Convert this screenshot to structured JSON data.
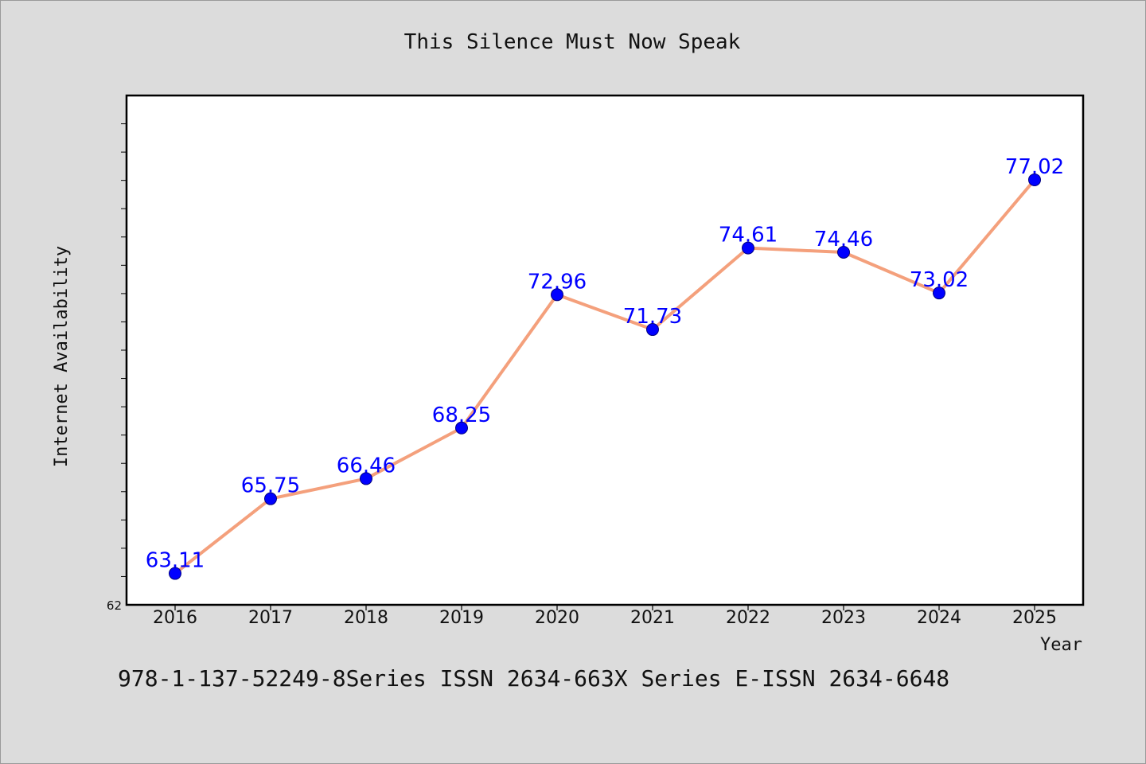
{
  "chart_data": {
    "type": "line",
    "title": "This Silence Must Now Speak",
    "xlabel": "Year",
    "ylabel": "Internet Availability",
    "categories": [
      "2016",
      "2017",
      "2018",
      "2019",
      "2020",
      "2021",
      "2022",
      "2023",
      "2024",
      "2025"
    ],
    "series": [
      {
        "values": [
          63.11,
          65.75,
          66.46,
          68.25,
          72.96,
          71.73,
          74.61,
          74.46,
          73.02,
          77.02
        ],
        "labels": [
          "63.11",
          "65.75",
          "66.46",
          "68.25",
          "72.96",
          "71.73",
          "74.61",
          "74.46",
          "73.02",
          "77.02"
        ]
      }
    ],
    "ylim": [
      62,
      80
    ],
    "ytick_labels": [
      "62"
    ],
    "grid": false,
    "legend": "none",
    "colors": {
      "line": "#f4a07c",
      "marker": "#0000ff",
      "marker_edge": "#000080",
      "data_label": "#0000ff",
      "plot_bg": "#ffffff",
      "page_bg": "#dcdcdc"
    }
  },
  "footer": {
    "text": "978-1-137-52249-8Series ISSN 2634-663X Series E-ISSN 2634-6648"
  }
}
